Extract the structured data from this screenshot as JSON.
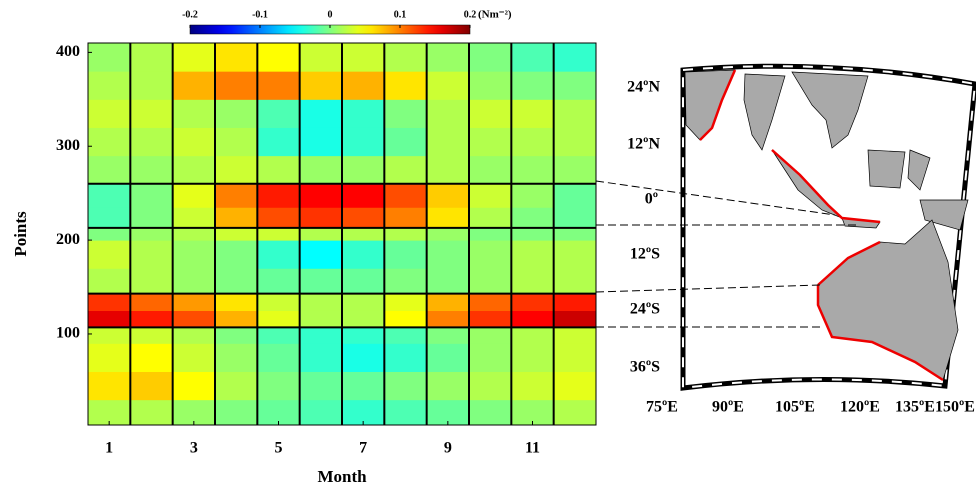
{
  "chart_data": {
    "type": "heatmap",
    "xlabel": "Month",
    "ylabel": "Points",
    "colorbar_label": "(Nm⁻²)",
    "colormap": "jet",
    "clim": [
      -0.2,
      0.2
    ],
    "cticks": [
      -0.2,
      -0.1,
      0,
      0.1,
      0.2
    ],
    "x": [
      1,
      2,
      3,
      4,
      5,
      6,
      7,
      8,
      9,
      10,
      11,
      12
    ],
    "xlim": [
      0.5,
      12.5
    ],
    "xticks": [
      1,
      3,
      5,
      7,
      9,
      11
    ],
    "ylim": [
      3,
      410
    ],
    "yticks": [
      100,
      200,
      300,
      400
    ],
    "y_bins": [
      3,
      30,
      60,
      90,
      107,
      125,
      143,
      170,
      200,
      213,
      235,
      260,
      290,
      320,
      350,
      380,
      410
    ],
    "values": [
      [
        0.02,
        0.02,
        0.01,
        0,
        -0.01,
        -0.02,
        -0.03,
        -0.02,
        -0.01,
        0,
        0.01,
        0.02
      ],
      [
        0.06,
        0.07,
        0.05,
        0.02,
        0,
        -0.01,
        -0.01,
        0,
        0.01,
        0.02,
        0.03,
        0.04
      ],
      [
        0.04,
        0.05,
        0.03,
        0.01,
        -0.01,
        -0.03,
        -0.04,
        -0.03,
        -0.01,
        0.01,
        0.02,
        0.03
      ],
      [
        0.03,
        0.03,
        0.02,
        0,
        -0.02,
        -0.03,
        -0.03,
        -0.02,
        0,
        0.01,
        0.02,
        0.03
      ],
      [
        0.16,
        0.14,
        0.12,
        0.08,
        0.04,
        0.02,
        0.02,
        0.05,
        0.1,
        0.13,
        0.15,
        0.17
      ],
      [
        0.13,
        0.11,
        0.09,
        0.06,
        0.03,
        0.02,
        0.02,
        0.04,
        0.08,
        0.11,
        0.13,
        0.14
      ],
      [
        0.02,
        0.02,
        0.01,
        0,
        -0.01,
        -0.01,
        -0.01,
        0,
        0,
        0.01,
        0.02,
        0.02
      ],
      [
        0.03,
        0.02,
        0.01,
        0,
        -0.03,
        -0.05,
        -0.03,
        -0.01,
        0,
        0.01,
        0.02,
        0.02
      ],
      [
        0,
        0.01,
        0.02,
        0.03,
        0.03,
        0.02,
        0.02,
        0.02,
        0.01,
        0,
        0,
        0
      ],
      [
        -0.02,
        0,
        0.03,
        0.08,
        0.12,
        0.13,
        0.12,
        0.1,
        0.06,
        0.02,
        0,
        -0.01
      ],
      [
        -0.02,
        0,
        0.04,
        0.1,
        0.14,
        0.15,
        0.15,
        0.12,
        0.07,
        0.03,
        0.01,
        -0.01
      ],
      [
        0.01,
        0.01,
        0.02,
        0.03,
        0.02,
        0.01,
        0.01,
        0.02,
        0.02,
        0.01,
        0.01,
        0.01
      ],
      [
        0.02,
        0.02,
        0.03,
        0.02,
        -0.03,
        -0.04,
        -0.03,
        -0.01,
        0.02,
        0.02,
        0.02,
        0.02
      ],
      [
        0.03,
        0.03,
        0.02,
        0.01,
        -0.02,
        -0.04,
        -0.03,
        0,
        0.02,
        0.03,
        0.03,
        0.02
      ],
      [
        0.02,
        0.02,
        0.08,
        0.1,
        0.1,
        0.07,
        0.08,
        0.06,
        0.03,
        0.01,
        0,
        0
      ],
      [
        0.01,
        0.02,
        0.04,
        0.06,
        0.05,
        0.03,
        0.03,
        0.02,
        0.01,
        0,
        -0.02,
        -0.03
      ]
    ],
    "hlines": [
      107,
      143,
      213,
      260
    ]
  },
  "map": {
    "lat_labels": [
      "24ºN",
      "12ºN",
      "0º",
      "12ºS",
      "24ºS",
      "36ºS"
    ],
    "lon_labels": [
      "75ºE",
      "90ºE",
      "105ºE",
      "120ºE",
      "135ºE",
      "150ºE"
    ]
  }
}
